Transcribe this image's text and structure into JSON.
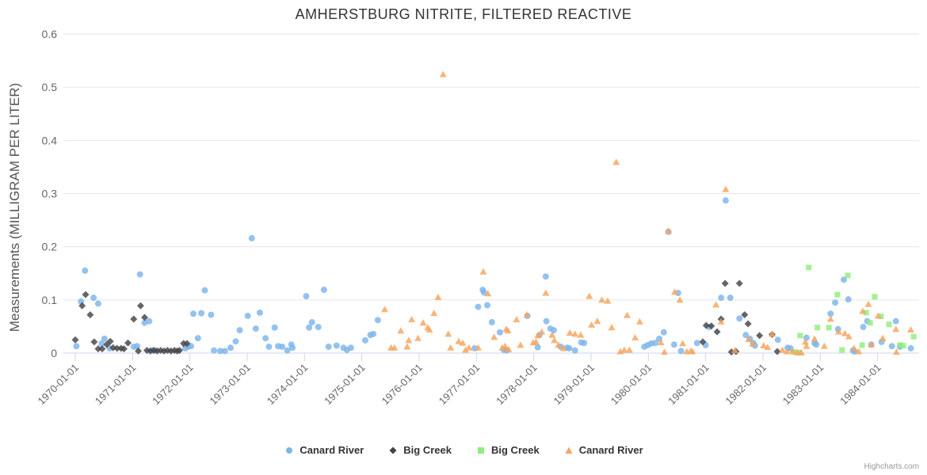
{
  "title": "AMHERSTBURG NITRITE, FILTERED REACTIVE",
  "credit_label": "Highcharts.com",
  "colors": {
    "blue": "#7cb5ec",
    "dark": "#434348",
    "green": "#90ed7d",
    "orange": "#f7a35c",
    "grid": "#e6e6e6",
    "axis_line": "#ccd6eb",
    "title_text": "#333333",
    "tick_text": "#666666",
    "axis_title_text": "#555555",
    "credit_text": "#999999"
  },
  "chart_data": {
    "type": "scatter",
    "title": "AMHERSTBURG NITRITE, FILTERED REACTIVE",
    "xlabel": "",
    "ylabel": "Measurements (MILLIGRAM PER LITER)",
    "ylim": [
      0,
      0.6
    ],
    "yticks": [
      0,
      0.1,
      0.2,
      0.3,
      0.4,
      0.5,
      0.6
    ],
    "xticks": [
      "1970-01-01",
      "1971-01-01",
      "1972-01-01",
      "1973-01-01",
      "1974-01-01",
      "1975-01-01",
      "1976-01-01",
      "1977-01-01",
      "1978-01-01",
      "1979-01-01",
      "1980-01-01",
      "1981-01-01",
      "1982-01-01",
      "1983-01-01",
      "1984-01-01"
    ],
    "x_unit": "decimal_year",
    "x_label_rotation": -45,
    "grid": true,
    "legend_position": "bottom-center",
    "series": [
      {
        "name": "Canard River",
        "marker": "circle",
        "color": "#7cb5ec",
        "points": [
          [
            1970.02,
            0.013
          ],
          [
            1970.1,
            0.097
          ],
          [
            1970.17,
            0.155
          ],
          [
            1970.32,
            0.104
          ],
          [
            1970.4,
            0.093
          ],
          [
            1970.46,
            0.018
          ],
          [
            1970.51,
            0.027
          ],
          [
            1970.6,
            0.009
          ],
          [
            1971.02,
            0.012
          ],
          [
            1971.08,
            0.013
          ],
          [
            1971.13,
            0.148
          ],
          [
            1971.21,
            0.057
          ],
          [
            1971.29,
            0.06
          ],
          [
            1971.34,
            0.005
          ],
          [
            1971.39,
            0.005
          ],
          [
            1971.92,
            0.009
          ],
          [
            1971.97,
            0.012
          ],
          [
            1972.02,
            0.013
          ],
          [
            1972.06,
            0.074
          ],
          [
            1972.14,
            0.028
          ],
          [
            1972.2,
            0.075
          ],
          [
            1972.26,
            0.118
          ],
          [
            1972.37,
            0.072
          ],
          [
            1972.42,
            0.005
          ],
          [
            1972.53,
            0.004
          ],
          [
            1972.61,
            0.004
          ],
          [
            1972.71,
            0.01
          ],
          [
            1972.8,
            0.022
          ],
          [
            1972.87,
            0.043
          ],
          [
            1973.01,
            0.07
          ],
          [
            1973.08,
            0.216
          ],
          [
            1973.15,
            0.046
          ],
          [
            1973.22,
            0.076
          ],
          [
            1973.32,
            0.028
          ],
          [
            1973.38,
            0.012
          ],
          [
            1973.48,
            0.048
          ],
          [
            1973.54,
            0.013
          ],
          [
            1973.61,
            0.012
          ],
          [
            1973.7,
            0.005
          ],
          [
            1973.77,
            0.016
          ],
          [
            1973.79,
            0.01
          ],
          [
            1974.03,
            0.107
          ],
          [
            1974.08,
            0.048
          ],
          [
            1974.13,
            0.058
          ],
          [
            1974.24,
            0.049
          ],
          [
            1974.34,
            0.119
          ],
          [
            1974.42,
            0.012
          ],
          [
            1974.56,
            0.014
          ],
          [
            1974.68,
            0.01
          ],
          [
            1974.74,
            0.006
          ],
          [
            1974.81,
            0.01
          ],
          [
            1975.06,
            0.024
          ],
          [
            1975.15,
            0.034
          ],
          [
            1975.2,
            0.036
          ],
          [
            1975.28,
            0.062
          ],
          [
            1976.97,
            0.009
          ],
          [
            1977.03,
            0.087
          ],
          [
            1977.11,
            0.119
          ],
          [
            1977.13,
            0.114
          ],
          [
            1977.19,
            0.09
          ],
          [
            1977.27,
            0.058
          ],
          [
            1977.41,
            0.039
          ],
          [
            1977.48,
            0.006
          ],
          [
            1977.53,
            0.005
          ],
          [
            1977.89,
            0.07
          ],
          [
            1978.07,
            0.011
          ],
          [
            1978.1,
            0.034
          ],
          [
            1978.21,
            0.144
          ],
          [
            1978.22,
            0.06
          ],
          [
            1978.29,
            0.046
          ],
          [
            1978.35,
            0.043
          ],
          [
            1978.47,
            0.012
          ],
          [
            1978.58,
            0.01
          ],
          [
            1978.62,
            0.009
          ],
          [
            1978.72,
            0.005
          ],
          [
            1978.83,
            0.02
          ],
          [
            1978.88,
            0.019
          ],
          [
            1979.93,
            0.012
          ],
          [
            1979.99,
            0.015
          ],
          [
            1980.05,
            0.018
          ],
          [
            1980.12,
            0.019
          ],
          [
            1980.19,
            0.027
          ],
          [
            1980.27,
            0.039
          ],
          [
            1980.35,
            0.228
          ],
          [
            1980.45,
            0.016
          ],
          [
            1980.52,
            0.113
          ],
          [
            1980.57,
            0.004
          ],
          [
            1980.85,
            0.019
          ],
          [
            1981.0,
            0.015
          ],
          [
            1981.06,
            0.049
          ],
          [
            1981.27,
            0.104
          ],
          [
            1981.35,
            0.287
          ],
          [
            1981.43,
            0.104
          ],
          [
            1981.59,
            0.065
          ],
          [
            1981.7,
            0.034
          ],
          [
            1981.77,
            0.027
          ],
          [
            1981.83,
            0.019
          ],
          [
            1981.86,
            0.014
          ],
          [
            1982.26,
            0.025
          ],
          [
            1982.43,
            0.01
          ],
          [
            1982.48,
            0.009
          ],
          [
            1982.76,
            0.029
          ],
          [
            1982.9,
            0.019
          ],
          [
            1982.93,
            0.016
          ],
          [
            1983.18,
            0.074
          ],
          [
            1983.26,
            0.095
          ],
          [
            1983.31,
            0.045
          ],
          [
            1983.41,
            0.138
          ],
          [
            1983.49,
            0.101
          ],
          [
            1983.57,
            0.005
          ],
          [
            1983.6,
            0.003
          ],
          [
            1983.75,
            0.049
          ],
          [
            1983.82,
            0.06
          ],
          [
            1983.89,
            0.016
          ],
          [
            1984.07,
            0.021
          ],
          [
            1984.25,
            0.013
          ],
          [
            1984.32,
            0.06
          ],
          [
            1984.39,
            0.012
          ],
          [
            1984.58,
            0.009
          ]
        ]
      },
      {
        "name": "Big Creek",
        "marker": "diamond",
        "color": "#434348",
        "points": [
          [
            1970.0,
            0.025
          ],
          [
            1970.12,
            0.089
          ],
          [
            1970.18,
            0.11
          ],
          [
            1970.26,
            0.072
          ],
          [
            1970.33,
            0.021
          ],
          [
            1970.4,
            0.008
          ],
          [
            1970.47,
            0.008
          ],
          [
            1970.55,
            0.016
          ],
          [
            1970.61,
            0.022
          ],
          [
            1970.66,
            0.01
          ],
          [
            1970.73,
            0.009
          ],
          [
            1970.8,
            0.009
          ],
          [
            1970.85,
            0.008
          ],
          [
            1970.92,
            0.019
          ],
          [
            1971.02,
            0.064
          ],
          [
            1971.1,
            0.004
          ],
          [
            1971.14,
            0.089
          ],
          [
            1971.21,
            0.067
          ],
          [
            1971.25,
            0.005
          ],
          [
            1971.31,
            0.004
          ],
          [
            1971.37,
            0.005
          ],
          [
            1971.43,
            0.004
          ],
          [
            1971.49,
            0.005
          ],
          [
            1971.55,
            0.004
          ],
          [
            1971.61,
            0.005
          ],
          [
            1971.67,
            0.004
          ],
          [
            1971.73,
            0.005
          ],
          [
            1971.78,
            0.004
          ],
          [
            1971.82,
            0.005
          ],
          [
            1971.89,
            0.018
          ],
          [
            1971.95,
            0.018
          ],
          [
            1980.95,
            0.021
          ],
          [
            1981.01,
            0.052
          ],
          [
            1981.1,
            0.051
          ],
          [
            1981.2,
            0.04
          ],
          [
            1981.27,
            0.064
          ],
          [
            1981.34,
            0.131
          ],
          [
            1981.45,
            0.002
          ],
          [
            1981.53,
            0.003
          ],
          [
            1981.59,
            0.131
          ],
          [
            1981.68,
            0.072
          ],
          [
            1981.74,
            0.055
          ],
          [
            1981.94,
            0.033
          ],
          [
            1982.16,
            0.035
          ],
          [
            1982.25,
            0.003
          ]
        ]
      },
      {
        "name": "Big Creek",
        "marker": "square",
        "color": "#90ed7d",
        "points": [
          [
            1982.54,
            0.002
          ],
          [
            1982.62,
            0.001
          ],
          [
            1982.65,
            0.033
          ],
          [
            1982.8,
            0.161
          ],
          [
            1982.95,
            0.048
          ],
          [
            1983.15,
            0.048
          ],
          [
            1983.3,
            0.11
          ],
          [
            1983.38,
            0.006
          ],
          [
            1983.48,
            0.146
          ],
          [
            1983.73,
            0.015
          ],
          [
            1983.8,
            0.076
          ],
          [
            1983.87,
            0.057
          ],
          [
            1983.95,
            0.106
          ],
          [
            1984.06,
            0.069
          ],
          [
            1984.2,
            0.054
          ],
          [
            1984.39,
            0.015
          ],
          [
            1984.45,
            0.014
          ],
          [
            1984.63,
            0.031
          ]
        ]
      },
      {
        "name": "Canard River",
        "marker": "triangle",
        "color": "#f7a35c",
        "points": [
          [
            1975.4,
            0.082
          ],
          [
            1975.51,
            0.01
          ],
          [
            1975.57,
            0.01
          ],
          [
            1975.68,
            0.042
          ],
          [
            1975.79,
            0.012
          ],
          [
            1975.82,
            0.024
          ],
          [
            1975.87,
            0.063
          ],
          [
            1975.98,
            0.028
          ],
          [
            1976.07,
            0.057
          ],
          [
            1976.15,
            0.048
          ],
          [
            1976.18,
            0.044
          ],
          [
            1976.26,
            0.075
          ],
          [
            1976.33,
            0.105
          ],
          [
            1976.42,
            0.524
          ],
          [
            1976.51,
            0.036
          ],
          [
            1976.55,
            0.01
          ],
          [
            1976.69,
            0.022
          ],
          [
            1976.76,
            0.019
          ],
          [
            1976.81,
            0.006
          ],
          [
            1976.87,
            0.01
          ],
          [
            1977.03,
            0.01
          ],
          [
            1977.12,
            0.153
          ],
          [
            1977.2,
            0.112
          ],
          [
            1977.31,
            0.03
          ],
          [
            1977.45,
            0.01
          ],
          [
            1977.5,
            0.013
          ],
          [
            1977.52,
            0.045
          ],
          [
            1977.55,
            0.042
          ],
          [
            1977.56,
            0.007
          ],
          [
            1977.7,
            0.063
          ],
          [
            1977.77,
            0.015
          ],
          [
            1977.88,
            0.072
          ],
          [
            1977.99,
            0.02
          ],
          [
            1978.04,
            0.021
          ],
          [
            1978.07,
            0.033
          ],
          [
            1978.14,
            0.04
          ],
          [
            1978.21,
            0.113
          ],
          [
            1978.32,
            0.034
          ],
          [
            1978.36,
            0.024
          ],
          [
            1978.43,
            0.015
          ],
          [
            1978.52,
            0.009
          ],
          [
            1978.63,
            0.038
          ],
          [
            1978.72,
            0.036
          ],
          [
            1978.82,
            0.034
          ],
          [
            1978.97,
            0.107
          ],
          [
            1979.01,
            0.053
          ],
          [
            1979.11,
            0.06
          ],
          [
            1979.19,
            0.1
          ],
          [
            1979.29,
            0.098
          ],
          [
            1979.36,
            0.048
          ],
          [
            1979.44,
            0.359
          ],
          [
            1979.51,
            0.003
          ],
          [
            1979.58,
            0.006
          ],
          [
            1979.63,
            0.071
          ],
          [
            1979.67,
            0.006
          ],
          [
            1979.77,
            0.029
          ],
          [
            1979.85,
            0.059
          ],
          [
            1980.22,
            0.02
          ],
          [
            1980.28,
            0.002
          ],
          [
            1980.35,
            0.23
          ],
          [
            1980.46,
            0.115
          ],
          [
            1980.55,
            0.1
          ],
          [
            1980.6,
            0.018
          ],
          [
            1980.67,
            0.003
          ],
          [
            1980.74,
            0.004
          ],
          [
            1980.77,
            0.003
          ],
          [
            1981.18,
            0.091
          ],
          [
            1981.27,
            0.059
          ],
          [
            1981.35,
            0.308
          ],
          [
            1981.51,
            0.005
          ],
          [
            1981.75,
            0.026
          ],
          [
            1981.82,
            0.017
          ],
          [
            1982.01,
            0.014
          ],
          [
            1982.08,
            0.011
          ],
          [
            1982.16,
            0.036
          ],
          [
            1982.34,
            0.006
          ],
          [
            1982.42,
            0.003
          ],
          [
            1982.52,
            0.004
          ],
          [
            1982.6,
            0.001
          ],
          [
            1982.67,
            0.001
          ],
          [
            1982.74,
            0.021
          ],
          [
            1982.76,
            0.013
          ],
          [
            1982.9,
            0.027
          ],
          [
            1983.07,
            0.013
          ],
          [
            1983.18,
            0.064
          ],
          [
            1983.32,
            0.04
          ],
          [
            1983.43,
            0.037
          ],
          [
            1983.5,
            0.031
          ],
          [
            1983.59,
            0.009
          ],
          [
            1983.67,
            0.003
          ],
          [
            1983.74,
            0.079
          ],
          [
            1983.84,
            0.092
          ],
          [
            1983.89,
            0.016
          ],
          [
            1984.01,
            0.07
          ],
          [
            1984.09,
            0.028
          ],
          [
            1984.32,
            0.045
          ],
          [
            1984.33,
            0.002
          ],
          [
            1984.58,
            0.044
          ]
        ]
      }
    ]
  }
}
